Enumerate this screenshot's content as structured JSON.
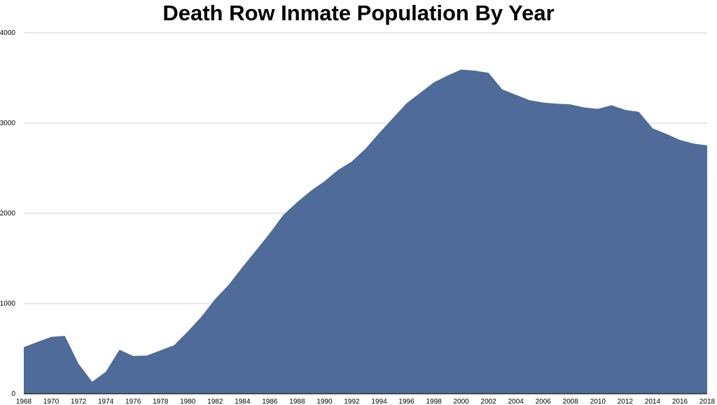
{
  "chart_data": {
    "type": "area",
    "title": "Death Row Inmate Population By Year",
    "xlabel": "",
    "ylabel": "",
    "x": [
      1968,
      1969,
      1970,
      1971,
      1972,
      1973,
      1974,
      1975,
      1976,
      1977,
      1978,
      1979,
      1980,
      1981,
      1982,
      1983,
      1984,
      1985,
      1986,
      1987,
      1988,
      1989,
      1990,
      1991,
      1992,
      1993,
      1994,
      1995,
      1996,
      1997,
      1998,
      1999,
      2000,
      2001,
      2002,
      2003,
      2004,
      2005,
      2006,
      2007,
      2008,
      2009,
      2010,
      2011,
      2012,
      2013,
      2014,
      2015,
      2016,
      2017,
      2018
    ],
    "series": [
      {
        "values": [
          517,
          575,
          631,
          642,
          334,
          134,
          244,
          488,
          420,
          423,
          482,
          539,
          691,
          856,
          1050,
          1209,
          1405,
          1591,
          1781,
          1984,
          2124,
          2250,
          2356,
          2482,
          2575,
          2716,
          2890,
          3054,
          3219,
          3335,
          3452,
          3527,
          3593,
          3581,
          3557,
          3374,
          3314,
          3254,
          3228,
          3215,
          3207,
          3173,
          3158,
          3199,
          3146,
          3125,
          2943,
          2881,
          2814,
          2773,
          2753
        ]
      }
    ],
    "xticks": [
      "1968",
      "1970",
      "1972",
      "1974",
      "1976",
      "1978",
      "1980",
      "1982",
      "1984",
      "1986",
      "1988",
      "1990",
      "1992",
      "1994",
      "1996",
      "1998",
      "2000",
      "2002",
      "2004",
      "2006",
      "2008",
      "2010",
      "2012",
      "2014",
      "2016",
      "2018"
    ],
    "yticks": [
      "0",
      "1000",
      "2000",
      "3000",
      "4000"
    ],
    "xlim": [
      1968,
      2018
    ],
    "ylim": [
      0,
      4000
    ],
    "grid": true,
    "colors": {
      "fill": "#4e6b9a",
      "grid": "#cfcfcf",
      "axis": "#000000"
    }
  }
}
